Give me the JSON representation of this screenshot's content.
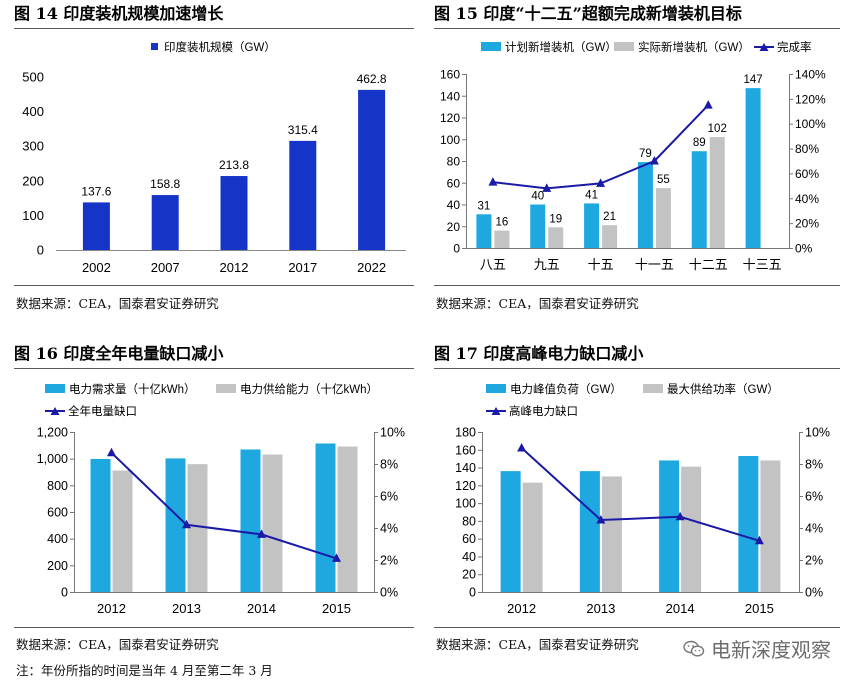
{
  "fig14": {
    "title": "图 14  印度装机规模加速增长",
    "source": "数据来源：CEA，国泰君安证券研究"
  },
  "fig15": {
    "title": "图 15  印度“十二五”超额完成新增装机目标",
    "source": "数据来源：CEA，国泰君安证券研究"
  },
  "fig16": {
    "title": "图 16  印度全年电量缺口减小",
    "source": "数据来源：CEA，国泰君安证券研究",
    "note": "注：年份所指的时间是当年 4 月至第二年 3 月"
  },
  "fig17": {
    "title": "图 17  印度高峰电力缺口减小",
    "source": "数据来源：CEA，国泰君安证券研究"
  },
  "watermark": {
    "text": "电新深度观察",
    "icon": "wechat-icon"
  },
  "chart_data": [
    {
      "id": "fig14",
      "type": "bar",
      "categories": [
        "2002",
        "2007",
        "2012",
        "2017",
        "2022"
      ],
      "series": [
        {
          "name": "印度装机规模（GW）",
          "values": [
            137.6,
            158.8,
            213.8,
            315.4,
            462.8
          ],
          "color": "#1535c8"
        }
      ],
      "data_labels": [
        "137.6",
        "158.8",
        "213.8",
        "315.4",
        "462.8"
      ],
      "ylim": [
        0,
        500
      ],
      "yticks": [
        "0",
        "100",
        "200",
        "300",
        "400",
        "500"
      ],
      "legend": "top-center"
    },
    {
      "id": "fig15",
      "type": "bar",
      "categories": [
        "八五",
        "九五",
        "十五",
        "十一五",
        "十二五",
        "十三五"
      ],
      "series": [
        {
          "name": "计划新增装机（GW）",
          "values": [
            31,
            40,
            41,
            79,
            89,
            147
          ],
          "color": "#1fa8e0"
        },
        {
          "name": "实际新增装机（GW）",
          "values": [
            16,
            19,
            21,
            55,
            102,
            null
          ],
          "color": "#c3c3c3"
        },
        {
          "name": "完成率",
          "type": "line",
          "axis": "right",
          "values": [
            0.53,
            0.48,
            0.52,
            0.7,
            1.15,
            null
          ],
          "color": "#1a1aa6"
        }
      ],
      "plan_labels": [
        "31",
        "40",
        "41",
        "79",
        "89",
        "147"
      ],
      "actual_labels": [
        "16",
        "19",
        "21",
        "55",
        "102",
        ""
      ],
      "ylim": [
        0,
        160
      ],
      "yticks": [
        "0",
        "20",
        "40",
        "60",
        "80",
        "100",
        "120",
        "140",
        "160"
      ],
      "y2lim": [
        0,
        1.4
      ],
      "y2ticks": [
        "0%",
        "20%",
        "40%",
        "60%",
        "80%",
        "100%",
        "120%",
        "140%"
      ],
      "legend": "top"
    },
    {
      "id": "fig16",
      "type": "bar",
      "categories": [
        "2012",
        "2013",
        "2014",
        "2015"
      ],
      "series": [
        {
          "name": "电力需求量（十亿kWh）",
          "values": [
            998,
            1002,
            1069,
            1114
          ],
          "color": "#1fa8e0"
        },
        {
          "name": "电力供给能力（十亿kWh）",
          "values": [
            911,
            959,
            1031,
            1091
          ],
          "color": "#c3c3c3"
        },
        {
          "name": "全年电量缺口",
          "type": "line",
          "axis": "right",
          "values": [
            0.087,
            0.042,
            0.036,
            0.021
          ],
          "color": "#1a1aa6"
        }
      ],
      "ylim": [
        0,
        1200
      ],
      "yticks": [
        "0",
        "200",
        "400",
        "600",
        "800",
        "1,000",
        "1,200"
      ],
      "y2lim": [
        0,
        0.1
      ],
      "y2ticks": [
        "0%",
        "2%",
        "4%",
        "6%",
        "8%",
        "10%"
      ],
      "legend": "top"
    },
    {
      "id": "fig17",
      "type": "bar",
      "categories": [
        "2012",
        "2013",
        "2014",
        "2015"
      ],
      "series": [
        {
          "name": "电力峰值负荷（GW）",
          "values": [
            136,
            136,
            148,
            153
          ],
          "color": "#1fa8e0"
        },
        {
          "name": "最大供给功率（GW）",
          "values": [
            123,
            130,
            141,
            148
          ],
          "color": "#c3c3c3"
        },
        {
          "name": "高峰电力缺口",
          "type": "line",
          "axis": "right",
          "values": [
            0.09,
            0.045,
            0.047,
            0.032
          ],
          "color": "#1a1aa6"
        }
      ],
      "ylim": [
        0,
        180
      ],
      "yticks": [
        "0",
        "20",
        "40",
        "60",
        "80",
        "100",
        "120",
        "140",
        "160",
        "180"
      ],
      "y2lim": [
        0,
        0.1
      ],
      "y2ticks": [
        "0%",
        "2%",
        "4%",
        "6%",
        "8%",
        "10%"
      ],
      "legend": "top"
    }
  ]
}
